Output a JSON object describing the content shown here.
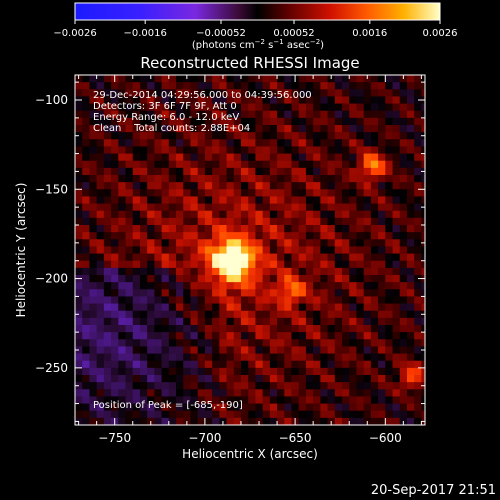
{
  "chart_data": {
    "type": "heatmap",
    "title": "Reconstructed RHESSI Image",
    "xlabel": "Heliocentric X (arcsec)",
    "ylabel": "Heliocentric Y (arcsec)",
    "xlim": [
      -772,
      -578
    ],
    "ylim": [
      -282,
      -86
    ],
    "x_ticks": [
      -750,
      -700,
      -650,
      -600
    ],
    "x_tick_labels": [
      "−750",
      "−700",
      "−650",
      "−600"
    ],
    "y_ticks": [
      -100,
      -150,
      -200,
      -250
    ],
    "y_tick_labels": [
      "−100",
      "−150",
      "−200",
      "−250"
    ],
    "colorbar": {
      "range": [
        -0.0026,
        0.0026
      ],
      "ticks": [
        -0.0026,
        -0.0016,
        -0.00052,
        0.00052,
        0.0016,
        0.0026
      ],
      "tick_labels": [
        "−0.0026",
        "−0.0016",
        "−0.00052",
        "0.00052",
        "0.0016",
        "0.0026"
      ],
      "unit_label": "(photons cm",
      "unit_exp1": "−2",
      "unit_mid": " s",
      "unit_exp2": "−1",
      "unit_mid2": " asec",
      "unit_exp3": "−2",
      "unit_close": ")"
    },
    "annotations": {
      "time_range": "29-Dec-2014 04:29:56.000 to 04:39:56.000",
      "detectors": "Detectors: 3F 6F 7F 9F, Att 0",
      "energy": "Energy Range: 6.0 - 12.0 keV",
      "clean": "Clean    Total counts: 2.88E+04",
      "peak": "Position of Peak = [-685,-190]"
    },
    "sources": [
      {
        "x": -685,
        "y": -190,
        "value": 0.0026
      },
      {
        "x": -607,
        "y": -137,
        "value": 0.0016
      },
      {
        "x": -652,
        "y": -207,
        "value": 0.0012
      },
      {
        "x": -585,
        "y": -255,
        "value": 0.0012
      }
    ],
    "footer": "20-Sep-2017 21:51",
    "colors": {
      "background": "#000000",
      "text": "#ffffff",
      "axes": "#ffffff"
    }
  }
}
